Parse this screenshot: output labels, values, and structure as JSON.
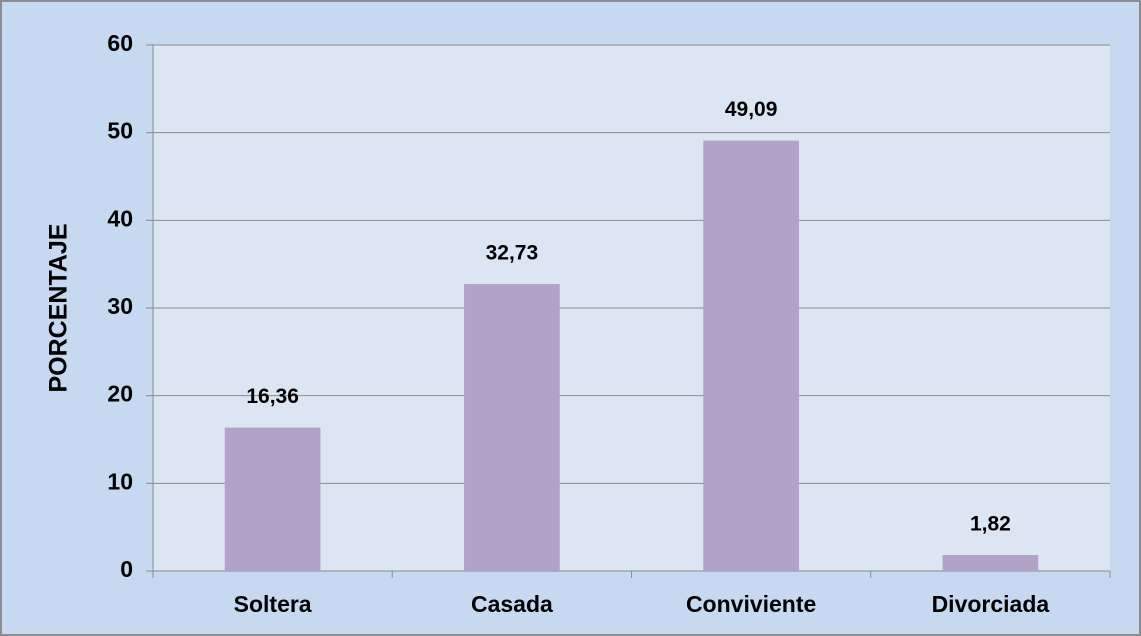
{
  "chart_data": {
    "type": "bar",
    "ylabel": "PORCENTAJE",
    "categories": [
      "Soltera",
      "Casada",
      "Conviviente",
      "Divorciada"
    ],
    "values": [
      16.36,
      32.73,
      49.09,
      1.82
    ],
    "value_labels": [
      "16,36",
      "32,73",
      "49,09",
      "1,82"
    ],
    "color": "#b3a2c7",
    "ylim": [
      0,
      60
    ],
    "yticks": [
      0,
      10,
      20,
      30,
      40,
      50,
      60
    ],
    "grid": true
  }
}
